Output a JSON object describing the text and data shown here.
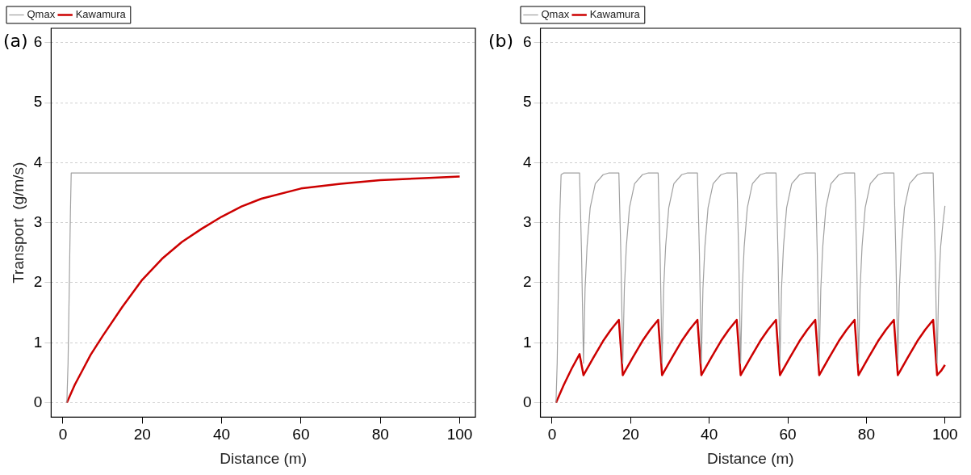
{
  "chart_data": [
    {
      "type": "line",
      "title": "(a)",
      "xlabel": "Distance (m)",
      "ylabel": "Transport  (g/m/s)",
      "xlim": [
        -2.96,
        103.96
      ],
      "xticks": [
        0,
        20,
        40,
        60,
        80,
        100
      ],
      "ylim": [
        -0.24,
        6.24
      ],
      "yticks": [
        0,
        1,
        2,
        3,
        4,
        5,
        6
      ],
      "grid": "y",
      "legend": "top left",
      "line_style": "solid",
      "marker": "none",
      "series": [
        {
          "name": "Qmax",
          "color": "#a0a0a0",
          "x": [
            1,
            1.3,
            1.6,
            1.9,
            2.1,
            100
          ],
          "values": [
            0,
            0.66,
            1.9,
            3.18,
            3.83,
            3.83
          ]
        },
        {
          "name": "Kawamura",
          "color": "#cc0000",
          "x": [
            1,
            3,
            5,
            7,
            10,
            15,
            20,
            25,
            30,
            35,
            40,
            45,
            50,
            60,
            70,
            80,
            90,
            100
          ],
          "values": [
            0,
            0.3,
            0.55,
            0.8,
            1.11,
            1.6,
            2.05,
            2.4,
            2.68,
            2.9,
            3.1,
            3.27,
            3.4,
            3.57,
            3.65,
            3.71,
            3.74,
            3.77
          ]
        }
      ]
    },
    {
      "type": "line",
      "title": "(b)",
      "xlabel": "Distance (m)",
      "xlim": [
        -2.96,
        103.96
      ],
      "xticks": [
        0,
        20,
        40,
        60,
        80,
        100
      ],
      "ylim": [
        -0.24,
        6.24
      ],
      "yticks": [
        0,
        1,
        2,
        3,
        4,
        5,
        6
      ],
      "grid": "y",
      "legend": "top left",
      "line_style": "solid",
      "marker": "none",
      "series": [
        {
          "name": "Qmax",
          "color": "#a0a0a0",
          "x": [
            1,
            1.3,
            1.6,
            2,
            2.3,
            3,
            7,
            7.5,
            8,
            8.4,
            8.9,
            9.7,
            11,
            13,
            14.5,
            17,
            17.5,
            18,
            18.4,
            18.9,
            19.7,
            21,
            23,
            24.5,
            27,
            27.5,
            28,
            28.4,
            28.9,
            29.7,
            31,
            33,
            34.5,
            37,
            37.5,
            38,
            38.4,
            38.9,
            39.7,
            41,
            43,
            44.5,
            47,
            47.5,
            48,
            48.4,
            48.9,
            49.7,
            51,
            53,
            54.5,
            57,
            57.5,
            58,
            58.4,
            58.9,
            59.7,
            61,
            63,
            64.5,
            67,
            67.5,
            68,
            68.4,
            68.9,
            69.7,
            71,
            73,
            74.5,
            77,
            77.5,
            78,
            78.4,
            78.9,
            79.7,
            81,
            83,
            84.5,
            87,
            87.5,
            88,
            88.4,
            88.9,
            89.7,
            91,
            93,
            94.5,
            97,
            97.5,
            98,
            98.4,
            98.9,
            99.5,
            100
          ],
          "values": [
            0,
            0.66,
            1.9,
            3.2,
            3.8,
            3.83,
            3.83,
            2.5,
            0.66,
            1.9,
            2.6,
            3.25,
            3.65,
            3.8,
            3.83,
            3.83,
            2.5,
            0.66,
            1.9,
            2.6,
            3.25,
            3.65,
            3.8,
            3.83,
            3.83,
            2.5,
            0.66,
            1.9,
            2.6,
            3.25,
            3.65,
            3.8,
            3.83,
            3.83,
            2.5,
            0.66,
            1.9,
            2.6,
            3.25,
            3.65,
            3.8,
            3.83,
            3.83,
            2.5,
            0.66,
            1.9,
            2.6,
            3.25,
            3.65,
            3.8,
            3.83,
            3.83,
            2.5,
            0.66,
            1.9,
            2.6,
            3.25,
            3.65,
            3.8,
            3.83,
            3.83,
            2.5,
            0.66,
            1.9,
            2.6,
            3.25,
            3.65,
            3.8,
            3.83,
            3.83,
            2.5,
            0.66,
            1.9,
            2.6,
            3.25,
            3.65,
            3.8,
            3.83,
            3.83,
            2.5,
            0.66,
            1.9,
            2.6,
            3.25,
            3.65,
            3.8,
            3.83,
            3.83,
            2.5,
            0.66,
            1.9,
            2.6,
            3.0,
            3.28
          ]
        },
        {
          "name": "Kawamura",
          "color": "#cc0000",
          "x": [
            1,
            3,
            5,
            7,
            8,
            10.5,
            13,
            15,
            17,
            18,
            20.5,
            23,
            25,
            27,
            28,
            30.5,
            33,
            35,
            37,
            38,
            40.5,
            43,
            45,
            47,
            48,
            50.5,
            53,
            55,
            57,
            58,
            60.5,
            63,
            65,
            67,
            68,
            70.5,
            73,
            75,
            77,
            78,
            80.5,
            83,
            85,
            87,
            88,
            90.5,
            93,
            95,
            97,
            98,
            99,
            100
          ],
          "values": [
            0,
            0.3,
            0.57,
            0.81,
            0.46,
            0.75,
            1.03,
            1.22,
            1.38,
            0.46,
            0.75,
            1.03,
            1.22,
            1.38,
            0.46,
            0.75,
            1.03,
            1.22,
            1.38,
            0.46,
            0.75,
            1.03,
            1.22,
            1.38,
            0.46,
            0.75,
            1.03,
            1.22,
            1.38,
            0.46,
            0.75,
            1.03,
            1.22,
            1.38,
            0.46,
            0.75,
            1.03,
            1.22,
            1.38,
            0.46,
            0.75,
            1.03,
            1.22,
            1.38,
            0.46,
            0.75,
            1.03,
            1.22,
            1.38,
            0.46,
            0.53,
            0.63
          ]
        }
      ]
    }
  ]
}
